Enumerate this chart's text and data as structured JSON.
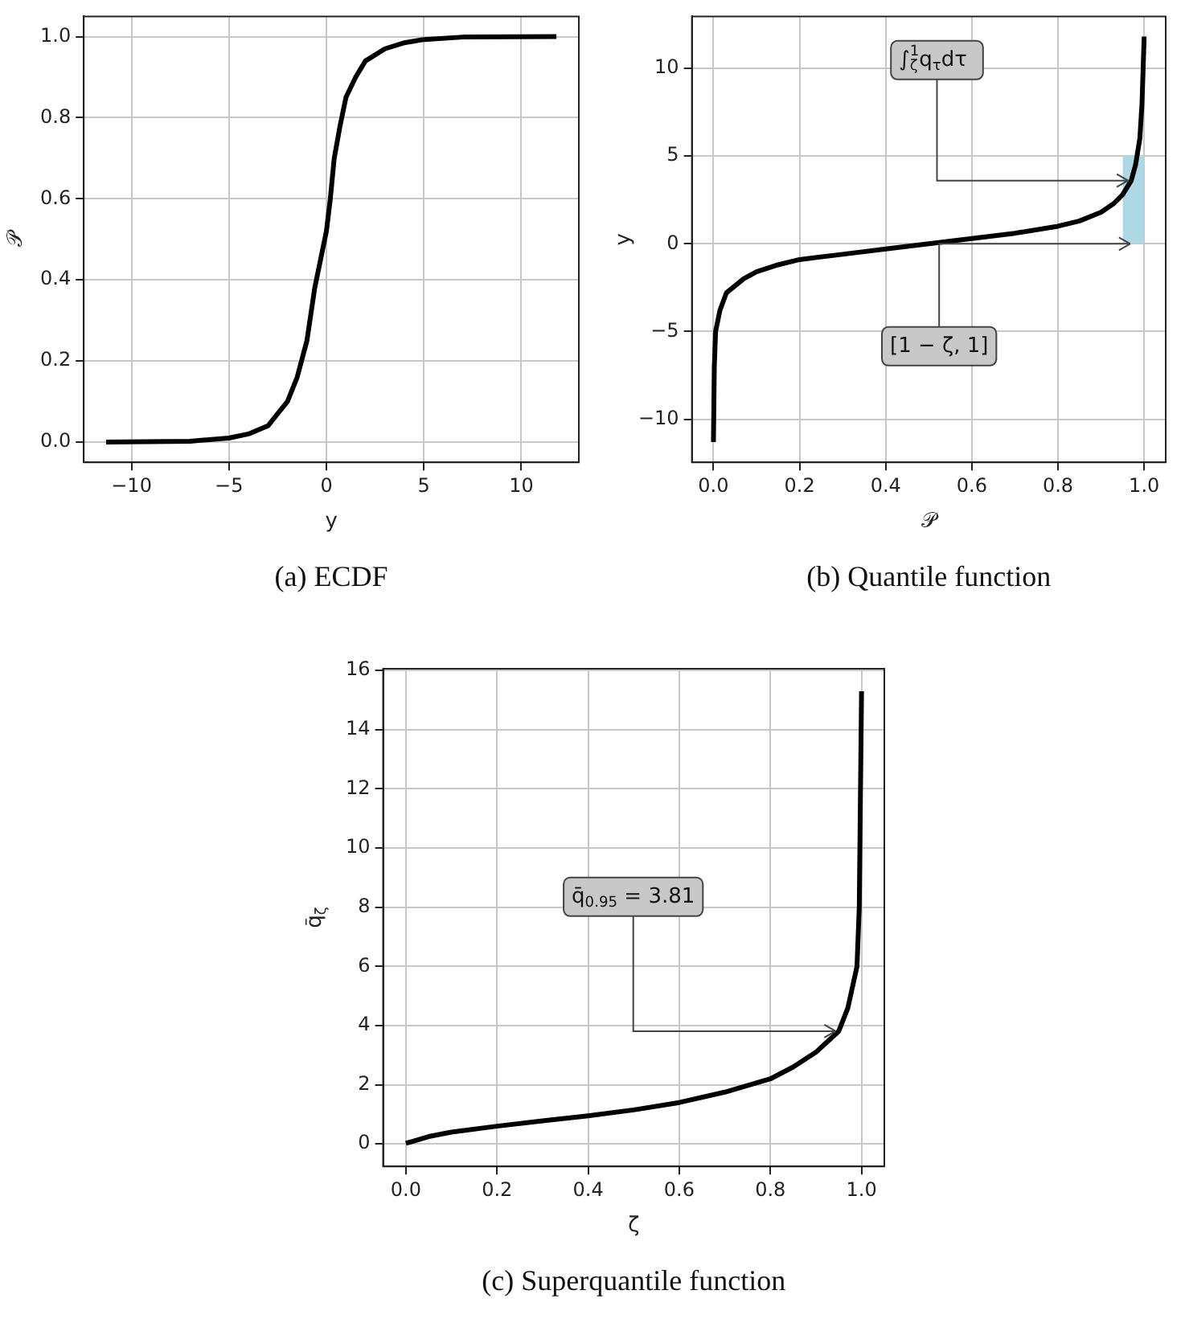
{
  "chart_data": [
    {
      "type": "line",
      "title": "(a) ECDF",
      "xlabel": "y",
      "ylabel": "𝒫",
      "xlim": [
        -12.45,
        12.95
      ],
      "ylim": [
        -0.05,
        1.05
      ],
      "xticks": [
        {
          "value": -10,
          "label": "−10"
        },
        {
          "value": -5,
          "label": "−5"
        },
        0,
        5,
        10
      ],
      "yticks": [
        {
          "value": 0,
          "label": "0.0"
        },
        0.2,
        0.4,
        0.6,
        0.8,
        {
          "value": 1,
          "label": "1.0"
        }
      ],
      "grid": true,
      "series": [
        {
          "color": "#000000",
          "x": [
            -11.3,
            -7,
            -5,
            -4,
            -3,
            -2.5,
            -2,
            -1.5,
            -1,
            -0.6,
            -0.3,
            0,
            0.2,
            0.4,
            0.7,
            1,
            1.5,
            2,
            3,
            4,
            5,
            7,
            11.8
          ],
          "values": [
            0,
            0.002,
            0.01,
            0.02,
            0.04,
            0.07,
            0.1,
            0.16,
            0.25,
            0.38,
            0.45,
            0.52,
            0.6,
            0.7,
            0.78,
            0.85,
            0.9,
            0.94,
            0.97,
            0.985,
            0.993,
            0.999,
            1
          ]
        }
      ]
    },
    {
      "type": "line",
      "title": "(b) Quantile function",
      "xlabel": "𝒫",
      "ylabel": "y",
      "xlim": [
        -0.05,
        1.05
      ],
      "ylim": [
        -12.45,
        12.95
      ],
      "xticks": [
        {
          "value": 0,
          "label": "0.0"
        },
        0.2,
        0.4,
        0.6,
        0.8,
        {
          "value": 1,
          "label": "1.0"
        }
      ],
      "yticks": [
        {
          "value": -10,
          "label": "−10"
        },
        {
          "value": -5,
          "label": "−5"
        },
        0,
        5,
        10
      ],
      "grid": true,
      "series": [
        {
          "type": "area",
          "color": "#add8e6",
          "x": [
            0.95,
            1
          ],
          "values": [
            5,
            5
          ]
        },
        {
          "color": "#000000",
          "x": [
            0,
            0.002,
            0.005,
            0.015,
            0.03,
            0.07,
            0.1,
            0.15,
            0.2,
            0.3,
            0.4,
            0.5,
            0.6,
            0.7,
            0.8,
            0.85,
            0.9,
            0.93,
            0.95,
            0.97,
            0.98,
            0.99,
            0.995,
            1
          ],
          "values": [
            -11.3,
            -7,
            -5,
            -3.8,
            -2.8,
            -2,
            -1.6,
            -1.2,
            -0.9,
            -0.6,
            -0.3,
            0,
            0.3,
            0.6,
            1,
            1.3,
            1.8,
            2.3,
            2.8,
            3.6,
            4.5,
            6,
            8,
            11.8
          ]
        }
      ],
      "annotations": [
        {
          "text": "∫$_{ζ}$$^{1}$q$_{τ}$dτ",
          "x": 0.97,
          "y": 3.6
        },
        {
          "text": "[1 − ζ, 1]",
          "x": 0.975,
          "y": 0
        }
      ]
    },
    {
      "type": "line",
      "title": "(c) Superquantile function",
      "xlabel": "ζ",
      "ylabel": "q̄$_{ζ}$",
      "xlim": [
        -0.05,
        1.05
      ],
      "ylim": [
        -0.76,
        16.06
      ],
      "xticks": [
        {
          "value": 0,
          "label": "0.0"
        },
        0.2,
        0.4,
        0.6,
        0.8,
        {
          "value": 1,
          "label": "1.0"
        }
      ],
      "yticks": [
        0,
        2,
        4,
        6,
        8,
        10,
        12,
        14,
        16
      ],
      "grid": true,
      "series": [
        {
          "color": "#000000",
          "x": [
            0,
            0.05,
            0.1,
            0.2,
            0.3,
            0.4,
            0.5,
            0.6,
            0.7,
            0.8,
            0.85,
            0.9,
            0.95,
            0.97,
            0.99,
            0.995,
            1
          ],
          "values": [
            0.02,
            0.25,
            0.4,
            0.6,
            0.78,
            0.95,
            1.15,
            1.4,
            1.75,
            2.2,
            2.6,
            3.1,
            3.81,
            4.6,
            6,
            8,
            15.3
          ]
        }
      ],
      "annotations": [
        {
          "text": "q̄$_{0.95}$ = 3.81",
          "x": 0.95,
          "y": 3.81
        }
      ]
    }
  ]
}
